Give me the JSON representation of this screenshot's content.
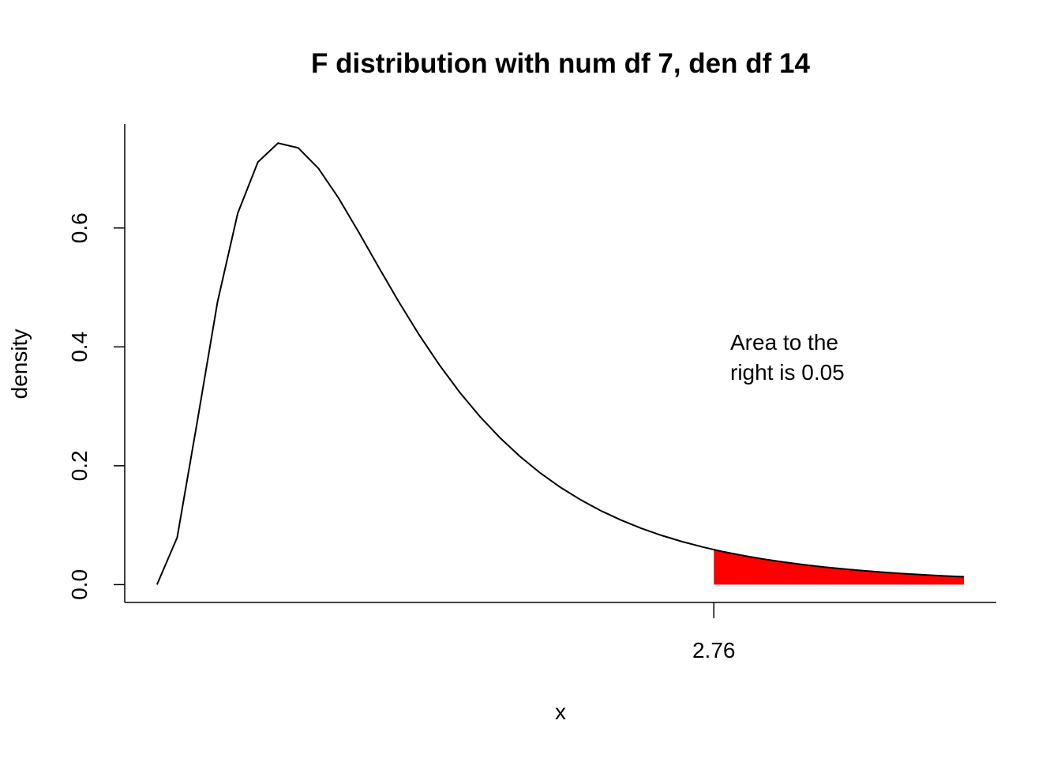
{
  "chart_data": {
    "type": "line",
    "title": "F distribution with num df 7, den df 14",
    "xlabel": "x",
    "ylabel": "density",
    "x": [
      0,
      0.1,
      0.2,
      0.3,
      0.4,
      0.5,
      0.6,
      0.7,
      0.8,
      0.9,
      1.0,
      1.1,
      1.2,
      1.3,
      1.4,
      1.5,
      1.6,
      1.7,
      1.8,
      1.9,
      2.0,
      2.1,
      2.2,
      2.3,
      2.4,
      2.5,
      2.6,
      2.7,
      2.76,
      2.8,
      2.9,
      3.0,
      3.1,
      3.2,
      3.3,
      3.4,
      3.5,
      3.6,
      3.7,
      3.8,
      3.9,
      4.0
    ],
    "series": [
      {
        "name": "density",
        "color": "#000000",
        "values": [
          0,
          0.0793,
          0.2753,
          0.4757,
          0.6246,
          0.7108,
          0.7428,
          0.7347,
          0.7003,
          0.6503,
          0.5928,
          0.5332,
          0.4749,
          0.4199,
          0.3694,
          0.3237,
          0.283,
          0.247,
          0.2154,
          0.1877,
          0.1636,
          0.1426,
          0.1243,
          0.1086,
          0.0948,
          0.0829,
          0.0726,
          0.0637,
          0.0589,
          0.0559,
          0.0492,
          0.0433,
          0.0382,
          0.0337,
          0.0298,
          0.0264,
          0.0234,
          0.0208,
          0.0185,
          0.0165,
          0.0147,
          0.0131
        ]
      }
    ],
    "shaded_region": {
      "from": 2.76,
      "color": "#ff0000"
    },
    "annotation": [
      "Area to the",
      "right is 0.05"
    ],
    "xlim": [
      -0.16,
      4.16
    ],
    "ylim": [
      -0.03,
      0.775
    ],
    "xticks": [
      2.76
    ],
    "yticks": [
      {
        "value": 0,
        "label": "0.0"
      },
      0.2,
      0.4,
      0.6
    ]
  }
}
